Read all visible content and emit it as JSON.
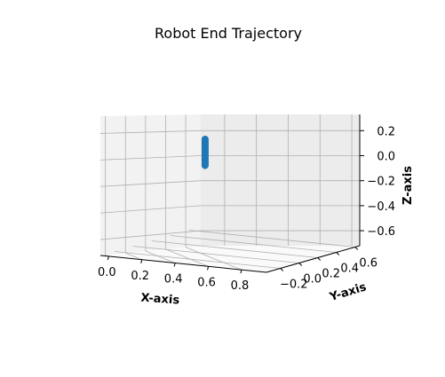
{
  "chart_data": {
    "type": "scatter",
    "projection": "3d",
    "title": "Robot End Trajectory",
    "xlabel": "X-axis",
    "ylabel": "Y-axis",
    "zlabel": "Z-axis",
    "xlim": [
      -0.05,
      0.95
    ],
    "ylim": [
      -0.35,
      0.65
    ],
    "zlim": [
      -0.72,
      0.33
    ],
    "x_ticks": [
      "0.0",
      "0.2",
      "0.4",
      "0.6",
      "0.8"
    ],
    "y_ticks": [
      "−0.2",
      "0.0",
      "0.2",
      "0.4",
      "0.6"
    ],
    "z_ticks": [
      "0.2",
      "0.0",
      "−0.2",
      "−0.4",
      "−0.6"
    ],
    "grid": true,
    "colors": {
      "series": "#1f77b4",
      "pane_left": "#f2f2f2",
      "pane_right": "#ececec",
      "pane_floor": "#fafafa",
      "grid": "#b0b0b0"
    },
    "series": [
      {
        "x": [
          0.3,
          0.3,
          0.3,
          0.3,
          0.3,
          0.3,
          0.3,
          0.3,
          0.3,
          0.3,
          0.3,
          0.3,
          0.3,
          0.3,
          0.3,
          0.3,
          0.3,
          0.3,
          0.3,
          0.3,
          0.3,
          0.3
        ],
        "y": [
          0.15,
          0.15,
          0.15,
          0.15,
          0.15,
          0.15,
          0.15,
          0.15,
          0.15,
          0.15,
          0.15,
          0.15,
          0.15,
          0.15,
          0.15,
          0.15,
          0.15,
          0.15,
          0.15,
          0.15,
          0.15,
          0.15
        ],
        "z": [
          0.15,
          0.14,
          0.13,
          0.12,
          0.11,
          0.1,
          0.09,
          0.08,
          0.07,
          0.06,
          0.05,
          0.04,
          0.03,
          0.02,
          0.01,
          0.0,
          -0.01,
          -0.02,
          -0.03,
          -0.04,
          -0.05,
          -0.06
        ]
      }
    ]
  }
}
